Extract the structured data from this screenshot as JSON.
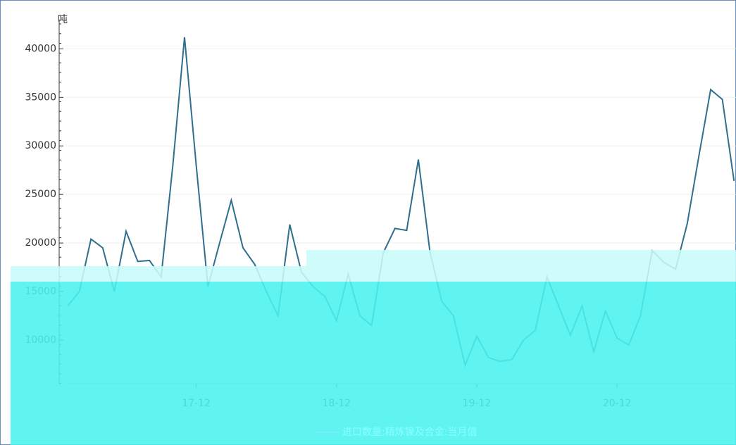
{
  "chart_data": {
    "type": "line",
    "y_unit": "吨",
    "categories": [
      null,
      null,
      null,
      null,
      null,
      null,
      null,
      null,
      null,
      null,
      null,
      "17-12",
      null,
      null,
      null,
      null,
      null,
      null,
      null,
      null,
      null,
      null,
      null,
      "18-12",
      null,
      null,
      null,
      null,
      null,
      null,
      null,
      null,
      null,
      null,
      null,
      "19-12",
      null,
      null,
      null,
      null,
      null,
      null,
      null,
      null,
      null,
      null,
      null,
      "20-12",
      null,
      null,
      null,
      null,
      null,
      null,
      null,
      null,
      null,
      null
    ],
    "series": [
      {
        "name": "进口数量:精炼镍及合金:当月值",
        "color": "#2e6f8e",
        "values": [
          13500,
          15000,
          20400,
          19500,
          15000,
          21200,
          18100,
          18200,
          16500,
          28000,
          41200,
          28000,
          15500,
          20000,
          24400,
          19500,
          17800,
          15000,
          12500,
          21900,
          17000,
          15500,
          14500,
          12000,
          16800,
          12500,
          11500,
          19000,
          21500,
          21300,
          28600,
          19000,
          14000,
          12500,
          7400,
          10400,
          8200,
          7800,
          8000,
          10000,
          11000,
          16500,
          13500,
          10500,
          13500,
          8800,
          13000,
          10200,
          9500,
          12500,
          19200,
          18000,
          17300,
          22000,
          29000,
          35800,
          34800,
          26400
        ]
      }
    ],
    "ylim": [
      5500,
      43000
    ],
    "yticks": [
      10000,
      15000,
      20000,
      25000,
      30000,
      35000,
      40000
    ],
    "grid": true
  }
}
